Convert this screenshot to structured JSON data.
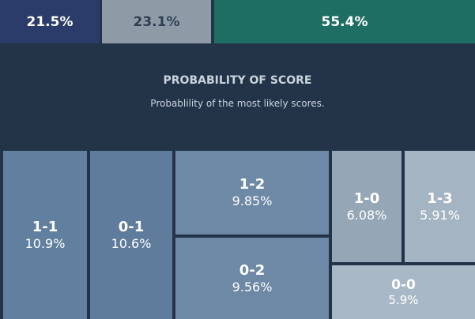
{
  "outcomes": {
    "home_win": "21.5%",
    "draw": "23.1%",
    "away_win": "55.4%"
  },
  "header": {
    "title": "PROBABILITY OF SCORE",
    "subtitle": "Probablility of the most likely scores."
  },
  "scores": [
    {
      "score": "1-1",
      "prob": "10.9%"
    },
    {
      "score": "0-1",
      "prob": "10.6%"
    },
    {
      "score": "1-2",
      "prob": "9.85%"
    },
    {
      "score": "0-2",
      "prob": "9.56%"
    },
    {
      "score": "1-0",
      "prob": "6.08%"
    },
    {
      "score": "1-3",
      "prob": "5.91%"
    },
    {
      "score": "0-0",
      "prob": "5.9%"
    }
  ]
}
